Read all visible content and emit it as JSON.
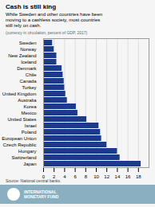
{
  "chart_data": {
    "type": "bar",
    "orientation": "horizontal",
    "title": "Cash is still king",
    "subtitle": "While Sweden and other countries have been\nmoving to a cashless society, most countries\nstill rely on cash.",
    "caption": "(currency in circulation, percent of GDP, 2017)",
    "source": "Source: National central banks.",
    "footer": [
      "INTERNATIONAL",
      "MONETARY FUND"
    ],
    "categories": [
      "Sweden",
      "Norway",
      "New Zealand",
      "Iceland",
      "Denmark",
      "Chile",
      "Canada",
      "Turkey",
      "United Kingdom",
      "Australia",
      "Korea",
      "Mexico",
      "United States",
      "Israel",
      "Poland",
      "European Union",
      "Czech Republic",
      "Hungary",
      "Switzerland",
      "Japan"
    ],
    "values": [
      1.7,
      2.0,
      2.5,
      2.5,
      3.5,
      3.7,
      3.9,
      4.0,
      4.2,
      4.5,
      6.2,
      6.5,
      8.2,
      10.5,
      10.8,
      11.0,
      12.0,
      14.0,
      14.5,
      18.5
    ],
    "color": "#1a3a8a",
    "xlim": [
      0,
      20
    ],
    "xticks": [
      0,
      2,
      4,
      6,
      8,
      10,
      12,
      14,
      16,
      18
    ],
    "grid": true
  }
}
